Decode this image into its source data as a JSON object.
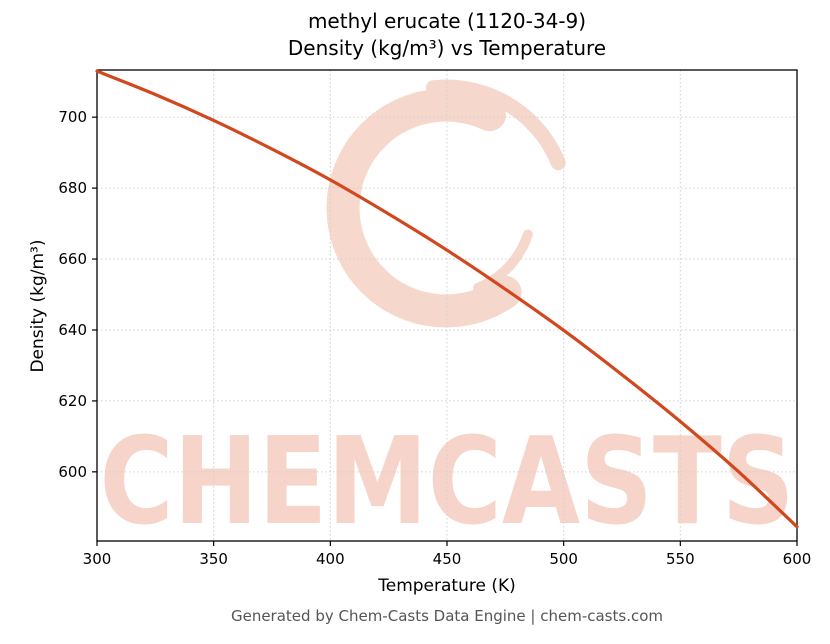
{
  "header": {
    "title_line1": "methyl erucate (1120-34-9)",
    "title_line2": "Density (kg/m³) vs Temperature"
  },
  "footer": {
    "text": "Generated by Chem-Casts Data Engine | chem-casts.com"
  },
  "watermark": {
    "text": "CHEMCASTS",
    "color": "#dd5a2d",
    "text_opacity": 0.26,
    "logo_opacity": 0.24
  },
  "chart_data": {
    "type": "line",
    "title": "methyl erucate (1120-34-9) — Density (kg/m³) vs Temperature",
    "xlabel": "Temperature (K)",
    "ylabel": "Density (kg/m³)",
    "xlim": [
      300,
      600
    ],
    "ylim": [
      580.5,
      713.3
    ],
    "x_ticks": [
      300,
      350,
      400,
      450,
      500,
      550,
      600
    ],
    "y_ticks": [
      600,
      620,
      640,
      660,
      680,
      700
    ],
    "grid": true,
    "grid_style": "dotted",
    "legend": "none",
    "series": [
      {
        "name": "density",
        "color": "#d2481e",
        "line_width": 3.2,
        "x": [
          300,
          325,
          350,
          375,
          400,
          425,
          450,
          475,
          500,
          525,
          550,
          575,
          600
        ],
        "y": [
          713.0,
          706.4,
          699.1,
          691.0,
          682.3,
          672.7,
          662.5,
          651.5,
          639.9,
          627.4,
          614.2,
          600.0,
          584.5
        ]
      }
    ]
  }
}
